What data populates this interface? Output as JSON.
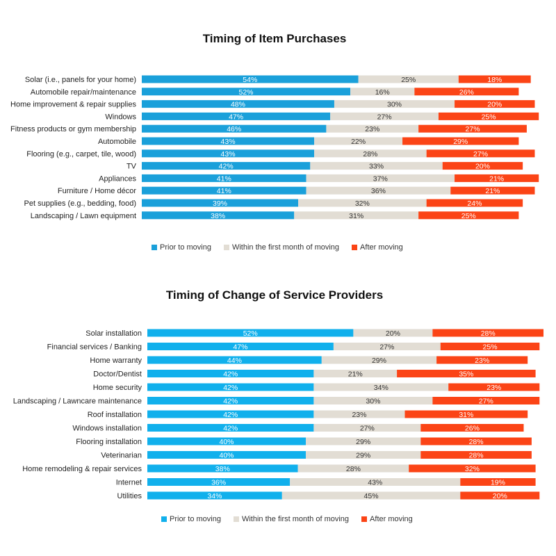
{
  "chart_data": [
    {
      "type": "bar",
      "orientation": "horizontal",
      "stacked": true,
      "title": "Timing of Item Purchases",
      "xlim": [
        0,
        100
      ],
      "legend_position": "bottom",
      "categories": [
        "Solar (i.e., panels for your home)",
        "Automobile repair/maintenance",
        "Home improvement & repair supplies",
        "Windows",
        "Fitness products or gym membership",
        "Automobile",
        "Flooring (e.g., carpet, tile, wood)",
        "TV",
        "Appliances",
        "Furniture / Home décor",
        "Pet supplies (e.g., bedding, food)",
        "Landscaping / Lawn equipment"
      ],
      "series": [
        {
          "name": "Prior to moving",
          "color": "#1aa0da",
          "label_color": "#ffffff",
          "values": [
            54,
            52,
            48,
            47,
            46,
            43,
            43,
            42,
            41,
            41,
            39,
            38
          ]
        },
        {
          "name": "Within the first month of moving",
          "color": "#e2ddd4",
          "label_color": "#333333",
          "values": [
            25,
            16,
            30,
            27,
            23,
            22,
            28,
            33,
            37,
            36,
            32,
            31
          ]
        },
        {
          "name": "After moving",
          "color": "#fb4416",
          "label_color": "#ffffff",
          "values": [
            18,
            26,
            20,
            25,
            27,
            29,
            27,
            20,
            21,
            21,
            24,
            25
          ]
        }
      ]
    },
    {
      "type": "bar",
      "orientation": "horizontal",
      "stacked": true,
      "title": "Timing of Change of Service Providers",
      "xlim": [
        0,
        100
      ],
      "legend_position": "bottom",
      "categories": [
        "Solar installation",
        "Financial services / Banking",
        "Home warranty",
        "Doctor/Dentist",
        "Home security",
        "Landscaping / Lawncare maintenance",
        "Roof installation",
        "Windows installation",
        "Flooring installation",
        "Veterinarian",
        "Home remodeling & repair services",
        "Internet",
        "Utilities"
      ],
      "series": [
        {
          "name": "Prior to moving",
          "color": "#11b0ec",
          "label_color": "#ffffff",
          "values": [
            52,
            47,
            44,
            42,
            42,
            42,
            42,
            42,
            40,
            40,
            38,
            36,
            34
          ]
        },
        {
          "name": "Within the first month of moving",
          "color": "#e2ddd4",
          "label_color": "#333333",
          "values": [
            20,
            27,
            29,
            21,
            34,
            30,
            23,
            27,
            29,
            29,
            28,
            43,
            45
          ]
        },
        {
          "name": "After moving",
          "color": "#fb4416",
          "label_color": "#ffffff",
          "values": [
            28,
            25,
            23,
            35,
            23,
            27,
            31,
            26,
            28,
            28,
            32,
            19,
            20
          ]
        }
      ]
    }
  ]
}
